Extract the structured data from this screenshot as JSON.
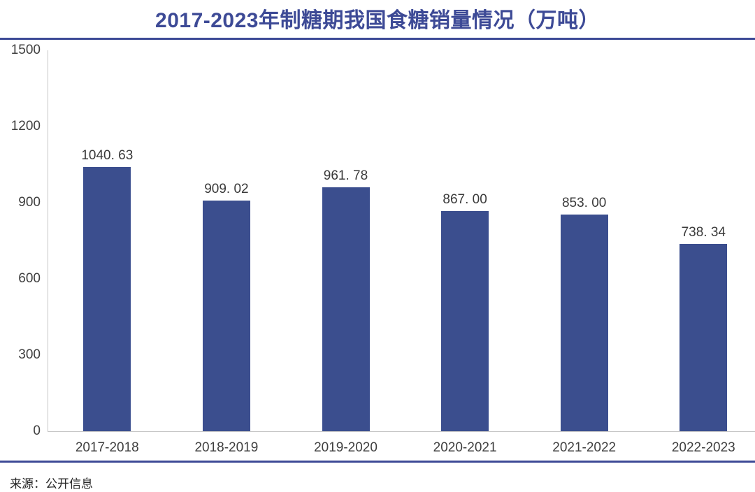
{
  "title": "2017-2023年制糖期我国食糖销量情况（万吨）",
  "source": "来源：公开信息",
  "colors": {
    "accent": "#3D4A96",
    "bar": "#3B4E8E",
    "axis_line": "#C6C6C6",
    "label_text": "#3F3F3F",
    "background": "#FFFFFF"
  },
  "chart_data": {
    "type": "bar",
    "title": "2017-2023年制糖期我国食糖销量情况（万吨）",
    "categories": [
      "2017-2018",
      "2018-2019",
      "2019-2020",
      "2020-2021",
      "2021-2022",
      "2022-2023"
    ],
    "values": [
      1040.63,
      909.02,
      961.78,
      867.0,
      853.0,
      738.34
    ],
    "value_labels": [
      "1040. 63",
      "909. 02",
      "961. 78",
      "867. 00",
      "853. 00",
      "738. 34"
    ],
    "xlabel": "",
    "ylabel": "",
    "ylim": [
      0,
      1500
    ],
    "yticks": [
      0,
      300,
      600,
      900,
      1200,
      1500
    ],
    "grid": false,
    "legend": false,
    "unit": "万吨"
  }
}
